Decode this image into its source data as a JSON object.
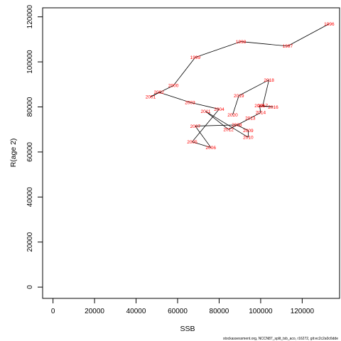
{
  "chart_data": {
    "type": "line",
    "xlabel": "SSB",
    "ylabel": "R(age 2)",
    "xlim": [
      -5000,
      138000
    ],
    "ylim": [
      -5000,
      124000
    ],
    "xticks": [
      0,
      20000,
      40000,
      60000,
      80000,
      100000,
      120000
    ],
    "yticks": [
      0,
      20000,
      40000,
      60000,
      80000,
      100000,
      120000
    ],
    "grid": false,
    "line_color": "#000000",
    "label_color": "#ff0000",
    "points": [
      {
        "year": "1996",
        "x": 133000,
        "y": 116900
      },
      {
        "year": "1997",
        "x": 113000,
        "y": 107000
      },
      {
        "year": "1998",
        "x": 90500,
        "y": 109000
      },
      {
        "year": "1999",
        "x": 68500,
        "y": 102000
      },
      {
        "year": "2000",
        "x": 58000,
        "y": 89500
      },
      {
        "year": "2001",
        "x": 47000,
        "y": 84500
      },
      {
        "year": "2002",
        "x": 51000,
        "y": 86500
      },
      {
        "year": "2003",
        "x": 66000,
        "y": 82000
      },
      {
        "year": "2004",
        "x": 80000,
        "y": 79000
      },
      {
        "year": "2005",
        "x": 67000,
        "y": 64500
      },
      {
        "year": "2006",
        "x": 76000,
        "y": 62000
      },
      {
        "year": "2007",
        "x": 68500,
        "y": 71500
      },
      {
        "year": "2008",
        "x": 88500,
        "y": 72000
      },
      {
        "year": "2009",
        "x": 94000,
        "y": 69500
      },
      {
        "year": "2010",
        "x": 94000,
        "y": 66500
      },
      {
        "year": "2011",
        "x": 73500,
        "y": 78000
      },
      {
        "year": "2012",
        "x": 84500,
        "y": 70000
      },
      {
        "year": "2013",
        "x": 95000,
        "y": 75000
      },
      {
        "year": "2014",
        "x": 100000,
        "y": 77500
      },
      {
        "year": "2015",
        "x": 99500,
        "y": 80500
      },
      {
        "year": "2016",
        "x": 106000,
        "y": 80000
      },
      {
        "year": "2017",
        "x": 101000,
        "y": 80500
      },
      {
        "year": "2018",
        "x": 104000,
        "y": 92000
      },
      {
        "year": "2019",
        "x": 89500,
        "y": 85000
      },
      {
        "year": "2020",
        "x": 86500,
        "y": 76500
      }
    ]
  },
  "footer": {
    "source_text": "stockassessment.org, NCCN87_split_tsb_aco, r16272, git:ec2c2a0c6dde"
  }
}
